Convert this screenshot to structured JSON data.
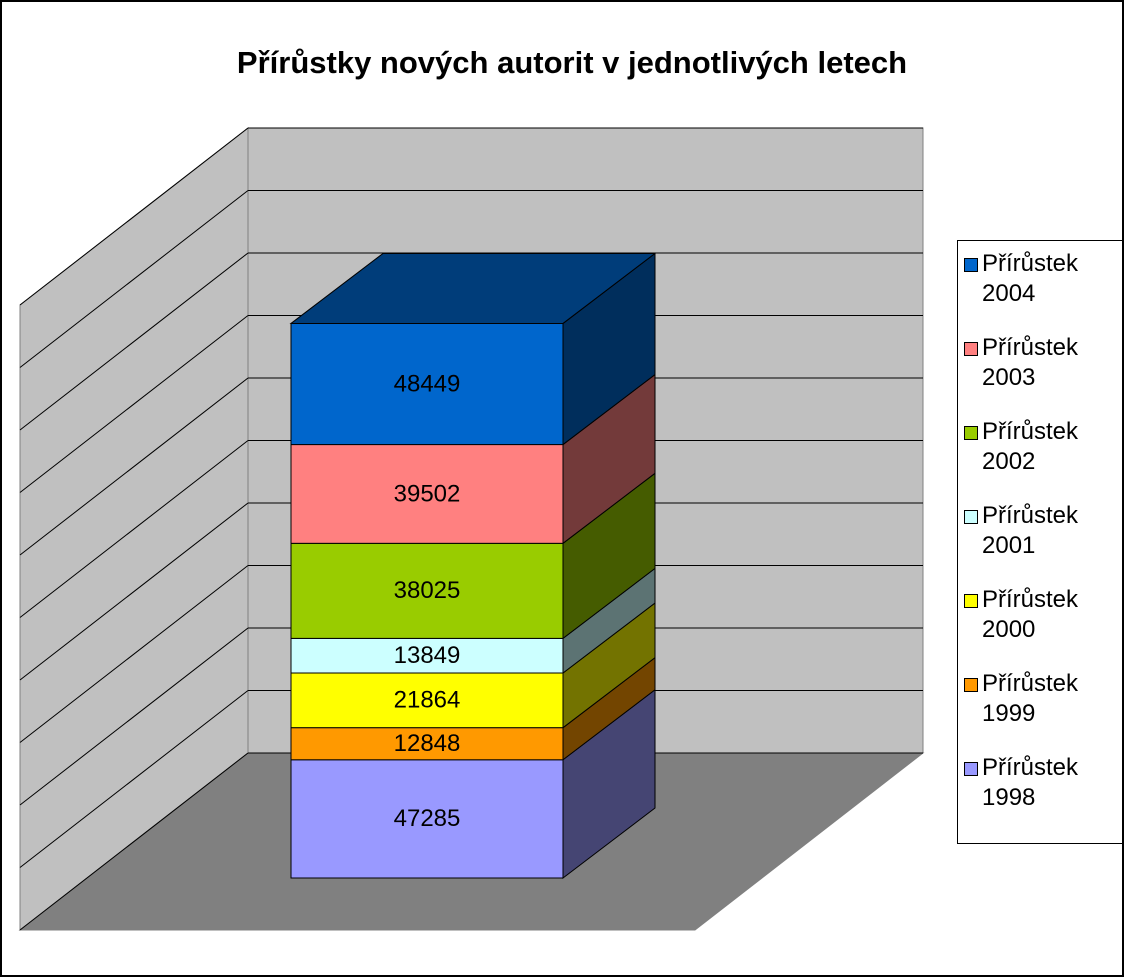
{
  "chart_data": {
    "type": "bar3d_stacked",
    "title": "Přírůstky nových autorit v jednotlivých letech",
    "categories": [
      null
    ],
    "ylim": [
      0,
      250000
    ],
    "yticks": [
      0,
      25000,
      50000,
      75000,
      100000,
      125000,
      150000,
      175000,
      200000,
      225000,
      250000
    ],
    "grid": true,
    "legend": "right",
    "series": [
      {
        "name": "Přírůstek 1998",
        "color": "#9999ff",
        "values": [
          47285
        ]
      },
      {
        "name": "Přírůstek 1999",
        "color": "#ff9900",
        "values": [
          12848
        ]
      },
      {
        "name": "Přírůstek 2000",
        "color": "#ffff00",
        "values": [
          21864
        ]
      },
      {
        "name": "Přírůstek 2001",
        "color": "#ccffff",
        "values": [
          13849
        ]
      },
      {
        "name": "Přírůstek 2002",
        "color": "#99cc00",
        "values": [
          38025
        ]
      },
      {
        "name": "Přírůstek 2003",
        "color": "#ff8080",
        "values": [
          39502
        ]
      },
      {
        "name": "Přírůstek 2004",
        "color": "#0066cc",
        "values": [
          48449
        ]
      }
    ]
  }
}
